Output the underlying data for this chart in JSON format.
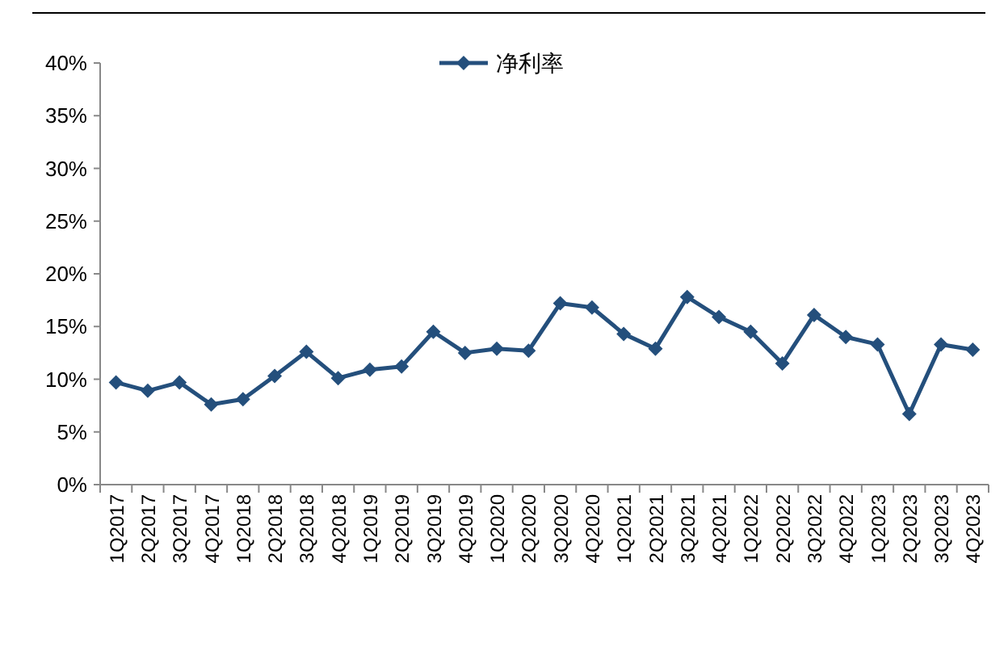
{
  "chart_data": {
    "type": "line",
    "categories": [
      "1Q2017",
      "2Q2017",
      "3Q2017",
      "4Q2017",
      "1Q2018",
      "2Q2018",
      "3Q2018",
      "4Q2018",
      "1Q2019",
      "2Q2019",
      "3Q2019",
      "4Q2019",
      "1Q2020",
      "2Q2020",
      "3Q2020",
      "4Q2020",
      "1Q2021",
      "2Q2021",
      "3Q2021",
      "4Q2021",
      "1Q2022",
      "2Q2022",
      "3Q2022",
      "4Q2022",
      "1Q2023",
      "2Q2023",
      "3Q2023",
      "4Q2023"
    ],
    "series": [
      {
        "name": "净利率",
        "color": "#244f7c",
        "values": [
          9.7,
          8.9,
          9.7,
          7.6,
          8.1,
          10.3,
          12.6,
          10.1,
          10.9,
          11.2,
          14.5,
          12.5,
          12.9,
          12.7,
          17.2,
          16.8,
          14.3,
          12.9,
          17.8,
          15.9,
          14.5,
          11.5,
          16.1,
          14.0,
          13.3,
          6.7,
          13.3,
          12.8
        ]
      }
    ],
    "ylim": [
      0,
      40
    ],
    "yticks": [
      {
        "value": 0,
        "label": "0%"
      },
      {
        "value": 5,
        "label": "5%"
      },
      {
        "value": 10,
        "label": "10%"
      },
      {
        "value": 15,
        "label": "15%"
      },
      {
        "value": 20,
        "label": "20%"
      },
      {
        "value": 25,
        "label": "25%"
      },
      {
        "value": 30,
        "label": "30%"
      },
      {
        "value": 35,
        "label": "35%"
      },
      {
        "value": 40,
        "label": "40%"
      }
    ],
    "grid": false,
    "legend": "top",
    "marker": "diamond",
    "line_style": "solid"
  }
}
